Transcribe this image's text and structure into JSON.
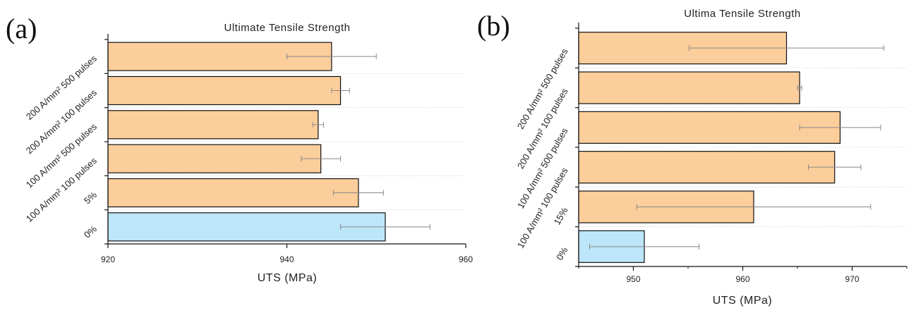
{
  "panels": [
    {
      "letter": "(a)"
    },
    {
      "letter": "(b)"
    }
  ],
  "colors": {
    "highlight": "#BDE6FA",
    "bar": "#FCCE9B",
    "edge": "#111111",
    "error": "#888888",
    "grid": "#cccccc"
  },
  "chart_data": [
    {
      "type": "bar",
      "orientation": "horizontal",
      "title": "Ultimate Tensile Strength",
      "xlabel": "UTS (MPa)",
      "ylabel": "",
      "xlim": [
        920,
        960
      ],
      "xticks": [
        "920",
        "940",
        "960"
      ],
      "categories": [
        "0%",
        "5%",
        "100 A/mm² 100 pulses",
        "100 A/mm² 500 pulses",
        "200 A/mm² 100 pulses",
        "200 A/mm² 500 pulses"
      ],
      "values": [
        951.0,
        948.0,
        943.8,
        943.5,
        946.0,
        945.0
      ],
      "errors": [
        5.0,
        2.8,
        2.2,
        0.6,
        1.0,
        5.0
      ],
      "highlight_index": 0,
      "grid": "dotted horizontal"
    },
    {
      "type": "bar",
      "orientation": "horizontal",
      "title": "Ultima Tensile Strength",
      "xlabel": "UTS (MPa)",
      "ylabel": "",
      "xlim": [
        945,
        975
      ],
      "xticks": [
        "950",
        "960",
        "970"
      ],
      "categories": [
        "0%",
        "15%",
        "100 A/mm² 100 pulses",
        "100 A/mm² 500 pulses",
        "200 A/mm² 100 pulses",
        "200 A/mm² 500 pulses"
      ],
      "values": [
        951.0,
        961.0,
        968.4,
        968.9,
        965.2,
        964.0
      ],
      "errors": [
        5.0,
        10.7,
        2.4,
        3.7,
        0.2,
        8.9
      ],
      "highlight_index": 0,
      "grid": "dotted horizontal"
    }
  ]
}
